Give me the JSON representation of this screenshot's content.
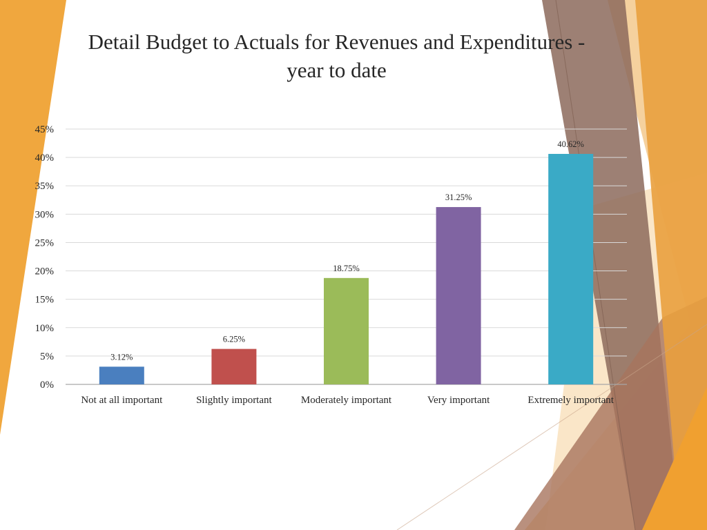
{
  "slide": {
    "title_line1": "Detail Budget to Actuals for Revenues and Expenditures  -",
    "title_line2": "year to date"
  },
  "chart_data": {
    "type": "bar",
    "title": "",
    "xlabel": "",
    "ylabel": "",
    "categories": [
      "Not at all important",
      "Slightly important",
      "Moderately important",
      "Very important",
      "Extremely important"
    ],
    "values": [
      3.12,
      6.25,
      18.75,
      31.25,
      40.62
    ],
    "data_labels": [
      "3.12%",
      "6.25%",
      "18.75%",
      "31.25%",
      "40.62%"
    ],
    "colors": [
      "#4a7fbf",
      "#c0504d",
      "#9bbb59",
      "#8064a2",
      "#3aaac6"
    ],
    "ylim": [
      0,
      45
    ],
    "y_ticks": [
      0,
      5,
      10,
      15,
      20,
      25,
      30,
      35,
      40,
      45
    ],
    "y_tick_labels": [
      "0%",
      "5%",
      "10%",
      "15%",
      "20%",
      "25%",
      "30%",
      "35%",
      "40%",
      "45%"
    ],
    "grid": true,
    "legend": "none"
  }
}
